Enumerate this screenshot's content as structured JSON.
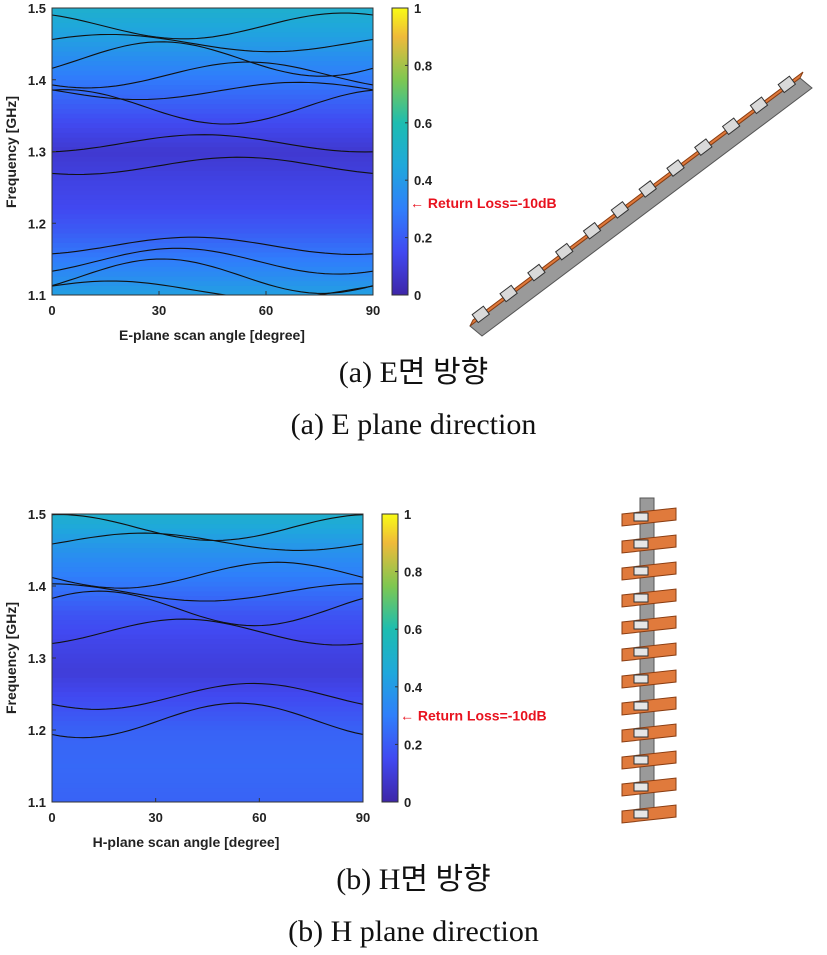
{
  "chart_data": [
    {
      "type": "heatmap",
      "xlabel": "E-plane scan angle [degree]",
      "ylabel": "Frequency [GHz]",
      "x_ticks": [
        "0",
        "30",
        "60",
        "90"
      ],
      "y_ticks": [
        "1.1",
        "1.2",
        "1.3",
        "1.4",
        "1.5"
      ],
      "xlim": [
        0,
        90
      ],
      "ylim": [
        1.1,
        1.5
      ],
      "colorbar": {
        "range": [
          0,
          1
        ],
        "ticks": [
          "0",
          "0.2",
          "0.4",
          "0.6",
          "0.8",
          "1"
        ],
        "colormap": "parula"
      },
      "annotation": "← Return Loss=-10dB",
      "annotation_value": 0.32,
      "caption_korean": "(a) E면 방향",
      "caption_english": "(a) E plane direction",
      "contour_levels": [
        0.1,
        0.15,
        0.2,
        0.25,
        0.3,
        0.35,
        0.4,
        0.45,
        0.5
      ],
      "frequency_profile": [
        {
          "f": 1.1,
          "v": 0.42
        },
        {
          "f": 1.13,
          "v": 0.34
        },
        {
          "f": 1.16,
          "v": 0.27
        },
        {
          "f": 1.19,
          "v": 0.2
        },
        {
          "f": 1.22,
          "v": 0.15
        },
        {
          "f": 1.26,
          "v": 0.12
        },
        {
          "f": 1.3,
          "v": 0.08
        },
        {
          "f": 1.34,
          "v": 0.15
        },
        {
          "f": 1.38,
          "v": 0.24
        },
        {
          "f": 1.42,
          "v": 0.33
        },
        {
          "f": 1.46,
          "v": 0.42
        },
        {
          "f": 1.5,
          "v": 0.5
        }
      ]
    },
    {
      "type": "heatmap",
      "xlabel": "H-plane scan angle [degree]",
      "ylabel": "Frequency [GHz]",
      "x_ticks": [
        "0",
        "30",
        "60",
        "90"
      ],
      "y_ticks": [
        "1.1",
        "1.2",
        "1.3",
        "1.4",
        "1.5"
      ],
      "xlim": [
        0,
        90
      ],
      "ylim": [
        1.1,
        1.5
      ],
      "colorbar": {
        "range": [
          0,
          1
        ],
        "ticks": [
          "0",
          "0.2",
          "0.4",
          "0.6",
          "0.8",
          "1"
        ],
        "colormap": "parula"
      },
      "annotation": "← Return Loss=-10dB",
      "annotation_value": 0.3,
      "caption_korean": "(b) H면 방향",
      "caption_english": "(b) H plane direction",
      "contour_levels": [
        0.1,
        0.15,
        0.2,
        0.25,
        0.3,
        0.35,
        0.4,
        0.45,
        0.5
      ],
      "frequency_profile": [
        {
          "f": 1.1,
          "v": 0.22
        },
        {
          "f": 1.15,
          "v": 0.24
        },
        {
          "f": 1.2,
          "v": 0.22
        },
        {
          "f": 1.24,
          "v": 0.16
        },
        {
          "f": 1.28,
          "v": 0.1
        },
        {
          "f": 1.32,
          "v": 0.13
        },
        {
          "f": 1.36,
          "v": 0.18
        },
        {
          "f": 1.4,
          "v": 0.27
        },
        {
          "f": 1.44,
          "v": 0.35
        },
        {
          "f": 1.47,
          "v": 0.42
        },
        {
          "f": 1.5,
          "v": 0.5
        }
      ]
    }
  ]
}
